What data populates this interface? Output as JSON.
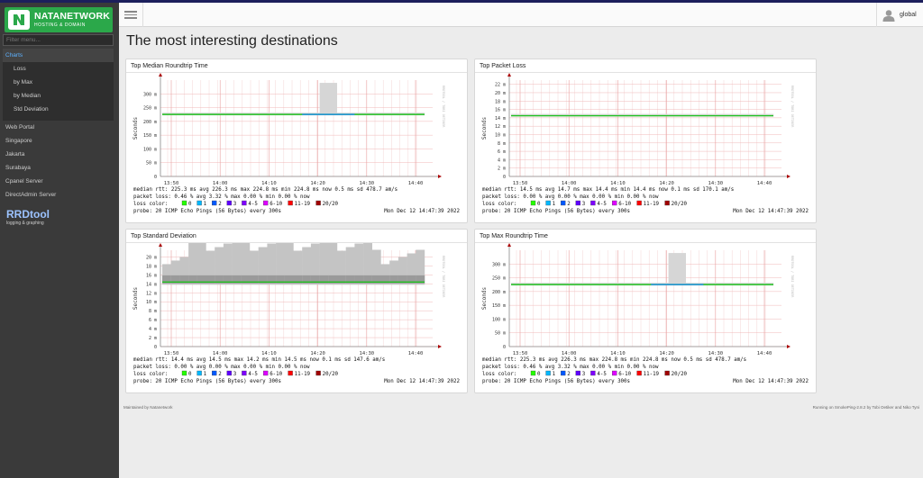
{
  "brand": {
    "title": "NATANETWORK",
    "subtitle": "HOSTING & DOMAIN"
  },
  "sidebar": {
    "filter_placeholder": "Filter menu...",
    "charts_label": "Charts",
    "chart_items": [
      {
        "label": "Loss"
      },
      {
        "label": "by Max"
      },
      {
        "label": "by Median"
      },
      {
        "label": "Std Deviation"
      }
    ],
    "targets": [
      {
        "label": "Web Portal"
      },
      {
        "label": "Singapore"
      },
      {
        "label": "Jakarta"
      },
      {
        "label": "Surabaya"
      },
      {
        "label": "Cpanel Server"
      },
      {
        "label": "DirectAdmin Server"
      }
    ],
    "rrd_title": "RRDtool",
    "rrd_sub": "logging & graphing"
  },
  "header": {
    "user": "global"
  },
  "page": {
    "title": "The most interesting destinations"
  },
  "footer": {
    "left": "Maintained by Natanetwork",
    "right": "Running on SmokePing-2.8.2 by Tobi Oetiker and Niko Tyni"
  },
  "colors": {
    "rtt_line": "#20c020",
    "rtt_blue": "#2090e0",
    "smoke": "#bbbbbb",
    "grid": "#ffc8c8"
  },
  "panels": [
    {
      "title": "Top Median Roundtrip Time",
      "chart_data": {
        "type": "line",
        "ylabel": "Seconds",
        "yticks": [
          "0",
          "50 m",
          "100 m",
          "150 m",
          "200 m",
          "250 m",
          "300 m"
        ],
        "ylim": [
          0,
          350
        ],
        "xticks": [
          "13:50",
          "14:00",
          "14:10",
          "14:20",
          "14:30",
          "14:40"
        ],
        "median_ms": [
          225.3,
          225.3,
          225.3,
          225.3,
          225.3,
          225.3,
          225.3,
          225.3,
          225.3,
          225.3,
          225.3,
          225.3,
          225.3,
          225.3,
          225.3,
          225.3,
          225.3,
          225.3,
          225.3,
          225.3,
          225.3,
          225.3,
          225.3,
          225.3,
          225.3,
          225.3,
          225.3,
          225.3,
          225.3,
          225.3
        ],
        "spike_index": [
          18,
          19
        ],
        "spike_max_ms": 340,
        "side_label": "RRDTOOL / TOBI OETIKER",
        "stats": [
          "median rtt:  225.3 ms avg  226.3 ms max  224.8 ms min  224.8 ms now  0.5 ms sd  478.7   am/s",
          "packet loss: 0.46 % avg  3.32 % max  0.00 % min  0.00 % now"
        ],
        "probe": "probe:       20 ICMP Echo Pings (56 Bytes) every 300s",
        "timestamp": "Mon Dec 12 14:47:39 2022"
      }
    },
    {
      "title": "Top Packet Loss",
      "chart_data": {
        "type": "line",
        "ylabel": "Seconds",
        "yticks": [
          "0",
          "2 m",
          "4 m",
          "6 m",
          "8 m",
          "10 m",
          "12 m",
          "14 m",
          "16 m",
          "18 m",
          "20 m",
          "22 m"
        ],
        "ylim": [
          0,
          23
        ],
        "xticks": [
          "13:50",
          "14:00",
          "14:10",
          "14:20",
          "14:30",
          "14:40"
        ],
        "median_ms": [
          14.5,
          14.5,
          14.5,
          14.5,
          14.5,
          14.5,
          14.5,
          14.5,
          14.5,
          14.5,
          14.5,
          14.5,
          14.5,
          14.5,
          14.5,
          14.5,
          14.5,
          14.5,
          14.5,
          14.5,
          14.5,
          14.5,
          14.5,
          14.5,
          14.5,
          14.5,
          14.5,
          14.5,
          14.5,
          14.5
        ],
        "side_label": "RRDTOOL / TOBI OETIKER",
        "stats": [
          "median rtt:  14.5 ms avg  14.7 ms max  14.4 ms min  14.4 ms now  0.1 ms sd  170.1   am/s",
          "packet loss: 0.00 % avg  0.00 % max  0.00 % min  0.00 % now"
        ],
        "probe": "probe:       20 ICMP Echo Pings (56 Bytes) every 300s",
        "timestamp": "Mon Dec 12 14:47:39 2022"
      }
    },
    {
      "title": "Top Standard Deviation",
      "chart_data": {
        "type": "line",
        "ylabel": "Seconds",
        "yticks": [
          "0",
          "2 m",
          "4 m",
          "6 m",
          "8 m",
          "10 m",
          "12 m",
          "14 m",
          "16 m",
          "18 m",
          "20 m"
        ],
        "ylim": [
          0,
          21.5
        ],
        "xticks": [
          "13:50",
          "14:00",
          "14:10",
          "14:20",
          "14:30",
          "14:40"
        ],
        "median_ms": [
          14.4,
          14.4,
          14.4,
          14.4,
          14.4,
          14.4,
          14.4,
          14.4,
          14.4,
          14.4,
          14.4,
          14.4,
          14.4,
          14.4,
          14.4,
          14.4,
          14.4,
          14.4,
          14.4,
          14.4,
          14.4,
          14.4,
          14.4,
          14.4,
          14.4,
          14.4,
          14.4,
          14.4,
          14.4,
          14.4
        ],
        "side_label": "RRDTOOL / TOBI OETIKER",
        "stats": [
          "median rtt:  14.4 ms avg  14.5 ms max  14.2 ms min  14.5 ms now  0.1 ms sd  147.6   am/s",
          "packet loss: 0.00 % avg  0.00 % max  0.00 % min  0.00 % now"
        ],
        "probe": "probe:       20 ICMP Echo Pings (56 Bytes) every 300s",
        "timestamp": "Mon Dec 12 14:47:39 2022"
      }
    },
    {
      "title": "Top Max Roundtrip Time",
      "chart_data": {
        "type": "line",
        "ylabel": "Seconds",
        "yticks": [
          "0",
          "50 m",
          "100 m",
          "150 m",
          "200 m",
          "250 m",
          "300 m"
        ],
        "ylim": [
          0,
          350
        ],
        "xticks": [
          "13:50",
          "14:00",
          "14:10",
          "14:20",
          "14:30",
          "14:40"
        ],
        "median_ms": [
          225.3,
          225.3,
          225.3,
          225.3,
          225.3,
          225.3,
          225.3,
          225.3,
          225.3,
          225.3,
          225.3,
          225.3,
          225.3,
          225.3,
          225.3,
          225.3,
          225.3,
          225.3,
          225.3,
          225.3,
          225.3,
          225.3,
          225.3,
          225.3,
          225.3,
          225.3,
          225.3,
          225.3,
          225.3,
          225.3
        ],
        "spike_index": [
          18,
          19
        ],
        "spike_max_ms": 340,
        "side_label": "RRDTOOL / TOBI OETIKER",
        "stats": [
          "median rtt:  225.3 ms avg  226.3 ms max  224.8 ms min  224.8 ms now  0.5 ms sd  478.7   am/s",
          "packet loss: 0.46 % avg  3.32 % max  0.00 % min  0.00 % now"
        ],
        "probe": "probe:       20 ICMP Echo Pings (56 Bytes) every 300s",
        "timestamp": "Mon Dec 12 14:47:39 2022"
      }
    }
  ],
  "legend": {
    "label": "loss color:",
    "items": [
      {
        "label": "0",
        "color": "#26ff00"
      },
      {
        "label": "1",
        "color": "#00b8ff"
      },
      {
        "label": "2",
        "color": "#0059ff"
      },
      {
        "label": "3",
        "color": "#5e00ff"
      },
      {
        "label": "4-5",
        "color": "#7e00ff"
      },
      {
        "label": "6-10",
        "color": "#dd00ff"
      },
      {
        "label": "11-19",
        "color": "#ff0000"
      },
      {
        "label": "20/20",
        "color": "#a00000"
      }
    ]
  }
}
